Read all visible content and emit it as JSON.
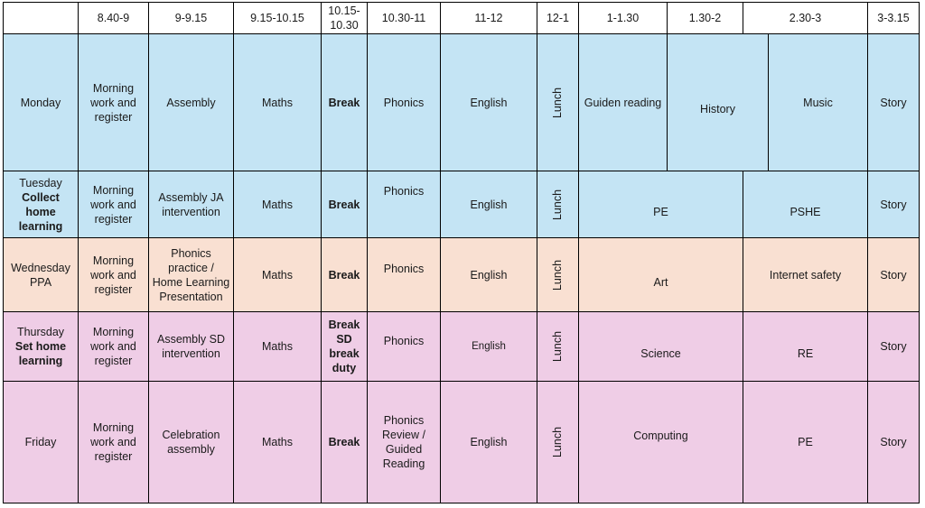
{
  "header": {
    "corner": "",
    "times": [
      "8.40-9",
      "9-9.15",
      "9.15-10.15",
      "10.15-10.30",
      "10.30-11",
      "11-12",
      "12-1",
      "1-1.30",
      "1.30-2",
      "2.30-3",
      "3-3.15"
    ]
  },
  "colors": {
    "monday_tuesday": "#c4e4f4",
    "wednesday": "#f9e0d2",
    "thursday_friday": "#efcde6"
  },
  "rows": {
    "monday": {
      "day": "Monday",
      "day_note": "",
      "c1": "Morning work and register",
      "c2": "Assembly",
      "c3": "Maths",
      "c4": "Break",
      "c5": "Phonics",
      "c6": "English",
      "c7": "Lunch",
      "c8": "Guiden reading",
      "c9": "History",
      "c10": "Music",
      "c11": "Story"
    },
    "tuesday": {
      "day": "Tuesday",
      "day_note": "Collect home learning",
      "c1": "Morning work and register",
      "c2": "Assembly JA intervention",
      "c3": "Maths",
      "c4": "Break",
      "c5": "Phonics",
      "c6": "English",
      "c7": "Lunch",
      "c8": "PE",
      "c10": "PSHE",
      "c11": "Story"
    },
    "wednesday": {
      "day": "Wednesday PPA",
      "day_note": "",
      "c1": "Morning work and register",
      "c2": "Phonics practice / Home Learning Presentation",
      "c3": "Maths",
      "c4": "Break",
      "c5": "Phonics",
      "c6": "English",
      "c7": "Lunch",
      "c8": "Art",
      "c10": "Internet safety",
      "c11": "Story"
    },
    "thursday": {
      "day": "Thursday",
      "day_note": "Set home learning",
      "c1": "Morning work and register",
      "c2": "Assembly SD intervention",
      "c3": "Maths",
      "c4": "Break SD break duty",
      "c5": "Phonics",
      "c6": "English",
      "c7": "Lunch",
      "c8": "Science",
      "c10": "RE",
      "c11": "Story"
    },
    "friday": {
      "day": "Friday",
      "day_note": "",
      "c1": "Morning work and register",
      "c2": "Celebration assembly",
      "c3": "Maths",
      "c4": "Break",
      "c5": "Phonics Review / Guided Reading",
      "c6": "English",
      "c7": "Lunch",
      "c8": "Computing",
      "c10": "PE",
      "c11": "Story"
    }
  }
}
